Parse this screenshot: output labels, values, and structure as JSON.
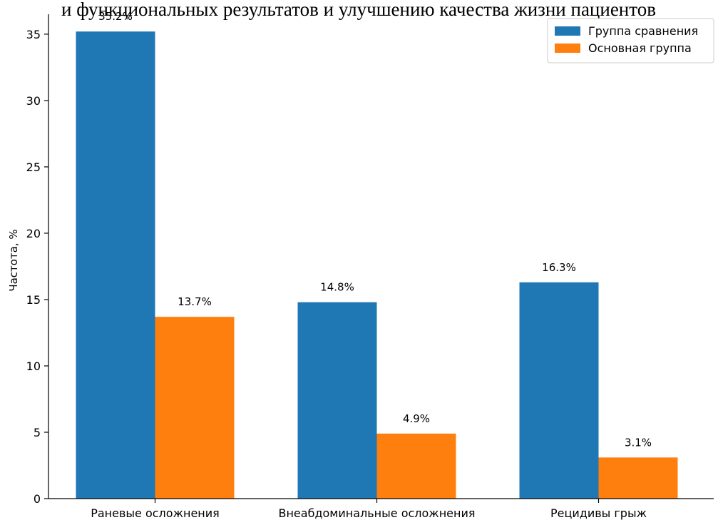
{
  "title": "и функциональных результатов и улучшению качества жизни пациентов",
  "chart_data": {
    "type": "bar",
    "title": "и функциональных результатов и улучшению качества жизни пациентов",
    "xlabel": "",
    "ylabel": "Частота, %",
    "ylim": [
      0,
      36.5
    ],
    "yticks": [
      0,
      5,
      10,
      15,
      20,
      25,
      30,
      35
    ],
    "categories": [
      "Раневые осложнения",
      "Внеабдоминальные осложнения",
      "Рецидивы грыж"
    ],
    "series": [
      {
        "name": "Группа сравнения",
        "color": "#1f77b4",
        "values": [
          35.2,
          14.8,
          16.3
        ],
        "labels": [
          "35.2%",
          "14.8%",
          "16.3%"
        ]
      },
      {
        "name": "Основная группа",
        "color": "#ff7f0e",
        "values": [
          13.7,
          4.9,
          3.1
        ],
        "labels": [
          "13.7%",
          "4.9%",
          "3.1%"
        ]
      }
    ],
    "legend_position": "top-right",
    "grid": false
  }
}
